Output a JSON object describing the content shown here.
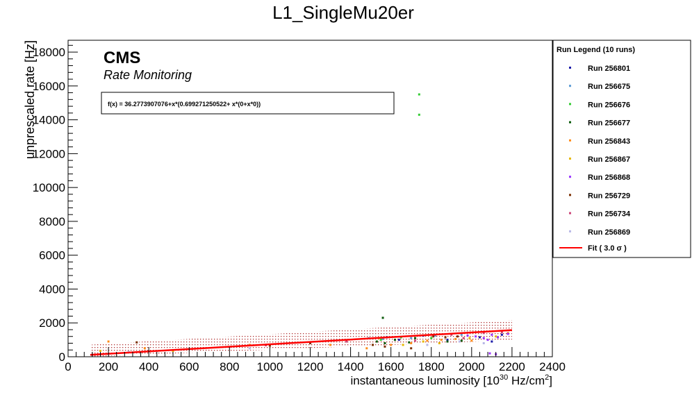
{
  "chart_data": {
    "type": "scatter",
    "title": "L1_SingleMu20er",
    "xlabel": "instantaneous luminosity [10",
    "xlabel_exp": "30",
    "xlabel_unit": " Hz/cm",
    "xlabel_unit_exp": "2",
    "xlabel_close": "]",
    "ylabel": "unprescaled rate [Hz]",
    "xlim": [
      0,
      2400
    ],
    "ylim": [
      0,
      18700
    ],
    "x_ticks": [
      0,
      200,
      400,
      600,
      800,
      1000,
      1200,
      1400,
      1600,
      1800,
      2000,
      2200,
      2400
    ],
    "y_ticks": [
      0,
      2000,
      4000,
      6000,
      8000,
      10000,
      12000,
      14000,
      16000,
      18000
    ],
    "grid": false,
    "branding": {
      "experiment": "CMS",
      "subtitle": "Rate Monitoring"
    },
    "fit_formula": "f(x) = 36.2773907076+x*(0.699271250522+ x*(0+x*0))",
    "fit": {
      "intercept": 36.2773907076,
      "slope": 0.699271250522,
      "x_range": [
        110,
        2200
      ],
      "band_sigma": 3.0,
      "band_halfwidth": 600,
      "color": "#ff0000",
      "band_color": "#b03030"
    },
    "legend": {
      "title": "Run Legend (10 runs)",
      "placement": "right",
      "fit_label": "Fit ( 3.0  σ )"
    },
    "series": [
      {
        "name": "Run 256801",
        "color": "#1a1aa8",
        "points": [
          [
            1580,
            1150
          ],
          [
            1640,
            1000
          ],
          [
            1760,
            1250
          ],
          [
            1880,
            1000
          ],
          [
            2040,
            1150
          ],
          [
            2100,
            900
          ],
          [
            2150,
            1300
          ]
        ]
      },
      {
        "name": "Run 256675",
        "color": "#5b9bd5",
        "points": [
          [
            1490,
            1100
          ],
          [
            1560,
            1050
          ],
          [
            1700,
            1100
          ],
          [
            1820,
            1250
          ],
          [
            1950,
            1300
          ]
        ]
      },
      {
        "name": "Run 256676",
        "color": "#33cc33",
        "points": [
          [
            1740,
            15500
          ],
          [
            1740,
            14300
          ],
          [
            1550,
            1000
          ],
          [
            1650,
            1150
          ],
          [
            1800,
            1100
          ]
        ]
      },
      {
        "name": "Run 256677",
        "color": "#0a5a0a",
        "points": [
          [
            1560,
            2300
          ],
          [
            1530,
            900
          ],
          [
            1570,
            800
          ],
          [
            1620,
            1000
          ],
          [
            1690,
            850
          ],
          [
            1720,
            1100
          ],
          [
            1880,
            900
          ],
          [
            1950,
            950
          ]
        ]
      },
      {
        "name": "Run 256843",
        "color": "#ff8c1a",
        "points": [
          [
            200,
            900
          ],
          [
            380,
            500
          ],
          [
            900,
            700
          ],
          [
            1300,
            700
          ],
          [
            1480,
            500
          ],
          [
            1600,
            700
          ],
          [
            1700,
            800
          ],
          [
            1780,
            950
          ],
          [
            1850,
            1000
          ],
          [
            1920,
            1050
          ],
          [
            2000,
            950
          ],
          [
            2180,
            1400
          ]
        ]
      },
      {
        "name": "Run 256867",
        "color": "#e6b800",
        "points": [
          [
            160,
            350
          ],
          [
            520,
            350
          ],
          [
            1540,
            1100
          ],
          [
            1660,
            700
          ],
          [
            1760,
            900
          ],
          [
            1840,
            800
          ],
          [
            1990,
            1100
          ],
          [
            2120,
            1200
          ]
        ]
      },
      {
        "name": "Run 256868",
        "color": "#9933ff",
        "points": [
          [
            1980,
            1250
          ],
          [
            2020,
            1200
          ],
          [
            2060,
            1100
          ],
          [
            2080,
            1000
          ],
          [
            2100,
            1300
          ],
          [
            2130,
            1150
          ],
          [
            2090,
            200
          ],
          [
            2120,
            150
          ],
          [
            2180,
            1350
          ]
        ]
      },
      {
        "name": "Run 256729",
        "color": "#7a2e00",
        "points": [
          [
            340,
            850
          ],
          [
            1000,
            650
          ],
          [
            1200,
            800
          ],
          [
            1510,
            700
          ],
          [
            1570,
            600
          ],
          [
            1700,
            500
          ],
          [
            1810,
            1200
          ],
          [
            1870,
            1150
          ],
          [
            1930,
            1200
          ]
        ]
      },
      {
        "name": "Run 256734",
        "color": "#cc4477",
        "points": [
          [
            980,
            680
          ],
          [
            1380,
            900
          ],
          [
            1720,
            950
          ],
          [
            1900,
            1300
          ],
          [
            1960,
            1100
          ],
          [
            2060,
            1400
          ],
          [
            2150,
            1450
          ]
        ]
      },
      {
        "name": "Run 256869",
        "color": "#b8b8e6",
        "points": [
          [
            300,
            300
          ],
          [
            900,
            500
          ],
          [
            1780,
            700
          ],
          [
            1940,
            900
          ],
          [
            2060,
            800
          ]
        ]
      }
    ]
  }
}
